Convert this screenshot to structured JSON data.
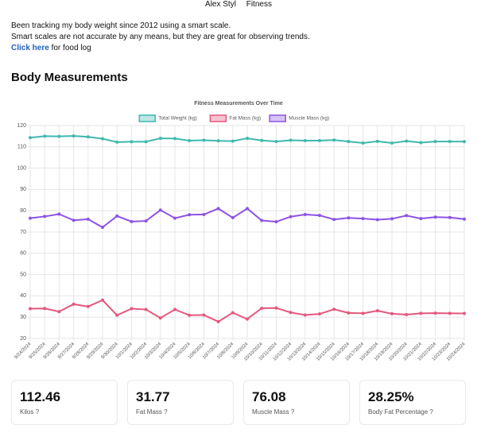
{
  "nav": {
    "brand": "Alex Styl",
    "link": "Fitness"
  },
  "intro": {
    "lines": [
      "Been tracking my body weight since 2012 using a smart scale.",
      "Smart scales are not accurate by any means, but they are great for observing trends."
    ],
    "link": "Click here",
    "link_suffix": "for food log"
  },
  "heading": "Body Measurements",
  "chart_data": {
    "type": "line",
    "title": "Fitness Measurements Over Time",
    "categories": [
      "9/24/2024",
      "9/25/2024",
      "9/26/2024",
      "9/27/2024",
      "9/28/2024",
      "9/29/2024",
      "9/30/2024",
      "10/1/2024",
      "10/2/2024",
      "10/3/2024",
      "10/4/2024",
      "10/5/2024",
      "10/6/2024",
      "10/7/2024",
      "10/8/2024",
      "10/9/2024",
      "10/10/2024",
      "10/11/2024",
      "10/12/2024",
      "10/13/2024",
      "10/14/2024",
      "10/15/2024",
      "10/16/2024",
      "10/17/2024",
      "10/18/2024",
      "10/19/2024",
      "10/20/2024",
      "10/21/2024",
      "10/22/2024",
      "10/23/2024",
      "10/24/2024"
    ],
    "series": [
      {
        "name": "Total Weight (kg)",
        "color": "#3fb8af",
        "values": [
          114.3,
          115.0,
          114.9,
          115.1,
          114.7,
          113.8,
          112.2,
          112.4,
          112.4,
          114.0,
          113.9,
          112.9,
          113.1,
          112.8,
          112.7,
          114.0,
          113.0,
          112.5,
          113.1,
          112.9,
          112.9,
          113.2,
          112.5,
          111.8,
          112.6,
          111.8,
          112.7,
          112.0,
          112.5,
          112.5,
          112.46
        ]
      },
      {
        "name": "Fat Mass (kg)",
        "color": "#e5577c",
        "values": [
          34.0,
          34.1,
          32.6,
          36.1,
          35.0,
          38.0,
          30.9,
          34.0,
          33.6,
          29.6,
          33.6,
          30.9,
          31.0,
          27.9,
          32.1,
          29.1,
          34.2,
          34.3,
          32.2,
          31.0,
          31.5,
          33.7,
          32.0,
          31.8,
          33.0,
          31.6,
          31.2,
          31.8,
          31.9,
          31.8,
          31.77
        ]
      },
      {
        "name": "Muscle Mass (kg)",
        "color": "#8e52e6",
        "values": [
          76.5,
          77.3,
          78.4,
          75.5,
          76.0,
          72.2,
          77.5,
          74.9,
          75.2,
          80.3,
          76.5,
          78.1,
          78.2,
          81.0,
          76.7,
          81.0,
          75.4,
          74.8,
          77.2,
          78.2,
          77.8,
          75.9,
          76.6,
          76.3,
          75.8,
          76.2,
          77.7,
          76.3,
          77.0,
          76.8,
          76.08
        ]
      }
    ],
    "ylim": [
      20,
      120
    ],
    "yticks": [
      20,
      30,
      40,
      50,
      60,
      70,
      80,
      90,
      100,
      110,
      120
    ],
    "grid": true,
    "legend": "top"
  },
  "cards": [
    {
      "value": "112.46",
      "label": "Kilos ?"
    },
    {
      "value": "31.77",
      "label": "Fat Mass ?"
    },
    {
      "value": "76.08",
      "label": "Muscle Mass ?"
    },
    {
      "value": "28.25%",
      "label": "Body Fat Percentage ?"
    }
  ]
}
